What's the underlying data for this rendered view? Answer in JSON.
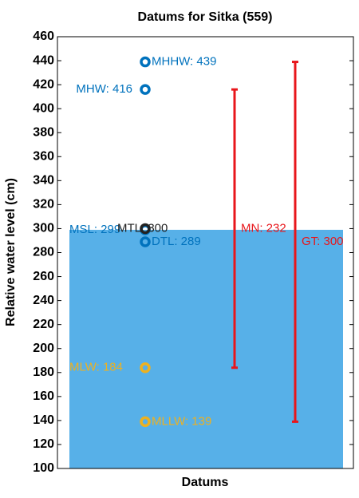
{
  "chart_data": {
    "type": "datums",
    "title": "Datums for Sitka (559)",
    "xlabel": "Datums",
    "ylabel": "Relative water level (cm)",
    "ylim": [
      100,
      460
    ],
    "yticks": [
      100,
      120,
      140,
      160,
      180,
      200,
      220,
      240,
      260,
      280,
      300,
      320,
      340,
      360,
      380,
      400,
      420,
      440,
      460
    ],
    "bar": {
      "value": 299,
      "color": "#57b0e8"
    },
    "points": [
      {
        "value": 439,
        "value_label": "MHHW: 439",
        "color": "#0072bd"
      },
      {
        "value": 416,
        "value_label": "MHW: 416",
        "color": "#0072bd"
      },
      {
        "value": 299,
        "value_label": "MSL: 299",
        "color": "#0072bd"
      },
      {
        "value": 300,
        "value_label": "MTL: 300",
        "color": "#222222"
      },
      {
        "value": 289,
        "value_label": "DTL: 289",
        "color": "#0072bd"
      },
      {
        "value": 184,
        "value_label": "MLW: 184",
        "color": "#edb120"
      },
      {
        "value": 139,
        "value_label": "MLLW: 139",
        "color": "#edb120"
      }
    ],
    "ranges": [
      {
        "low": 184,
        "high": 416,
        "value": 232,
        "value_label": "MN: 232",
        "color": "#e8161b"
      },
      {
        "low": 139,
        "high": 439,
        "value": 300,
        "value_label": "GT: 300",
        "color": "#e8161b"
      }
    ]
  }
}
